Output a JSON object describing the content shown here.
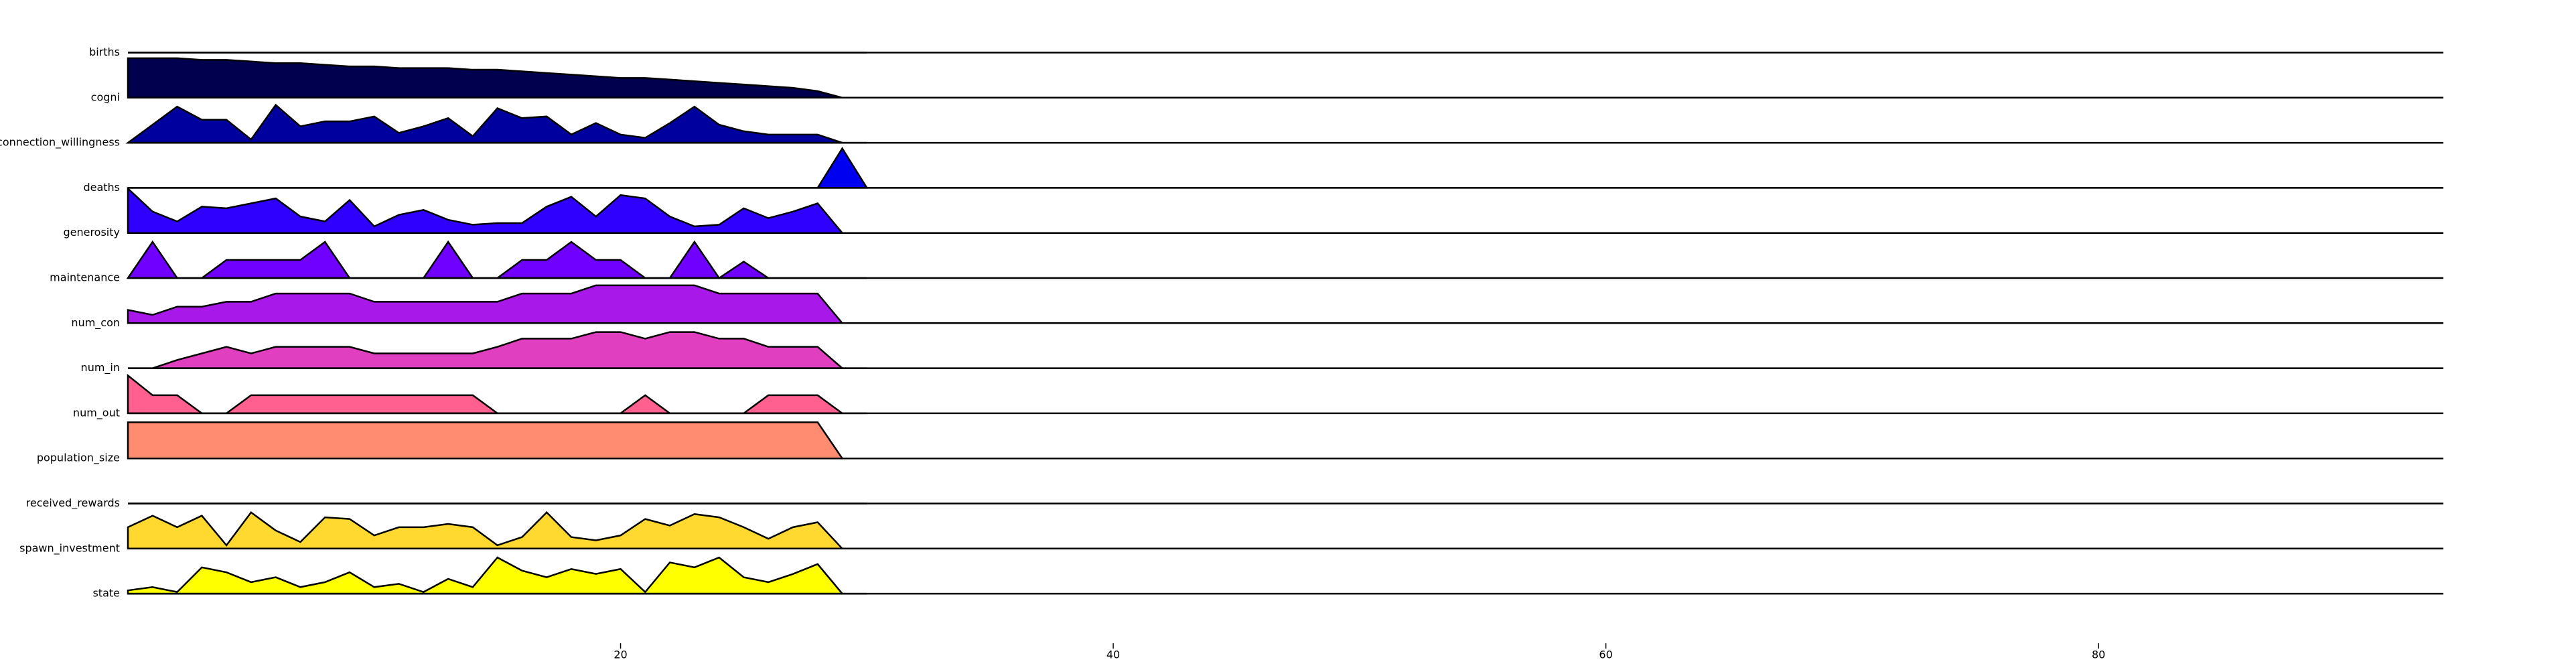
{
  "chart_data": {
    "type": "ridgeline",
    "x": [
      0,
      1,
      2,
      3,
      4,
      5,
      6,
      7,
      8,
      9,
      10,
      11,
      12,
      13,
      14,
      15,
      16,
      17,
      18,
      19,
      20,
      21,
      22,
      23,
      24,
      25,
      26,
      27,
      28,
      29,
      30
    ],
    "xlim": [
      0,
      94
    ],
    "xticks": [
      20,
      40,
      60,
      80
    ],
    "ylim": [
      0,
      27
    ],
    "series": [
      {
        "name": "births",
        "color": "#000030",
        "values": [
          0,
          0,
          0,
          0,
          0,
          0,
          0,
          0,
          0,
          0,
          0,
          0,
          0,
          0,
          0,
          0,
          0,
          0,
          0,
          0,
          0,
          0,
          0,
          0,
          0,
          0,
          0,
          0,
          0,
          0,
          0
        ]
      },
      {
        "name": "cogni",
        "color": "#00004e",
        "values": [
          24,
          24,
          24,
          23,
          23,
          22,
          21,
          21,
          20,
          19,
          19,
          18,
          18,
          18,
          17,
          17,
          16,
          15,
          14,
          13,
          12,
          12,
          11,
          10,
          9,
          8,
          7,
          6,
          4,
          0,
          0
        ]
      },
      {
        "name": "connection_willingness",
        "color": "#00009e",
        "values": [
          0,
          11,
          22,
          14,
          14,
          2,
          23,
          10,
          13,
          13,
          16,
          6,
          10,
          15,
          4,
          21,
          15,
          16,
          5,
          12,
          5,
          3,
          12,
          22,
          11,
          7,
          5,
          5,
          5,
          0,
          0
        ]
      },
      {
        "name": "deaths",
        "color": "#0000f0",
        "values": [
          0,
          0,
          0,
          0,
          0,
          0,
          0,
          0,
          0,
          0,
          0,
          0,
          0,
          0,
          0,
          0,
          0,
          0,
          0,
          0,
          0,
          0,
          0,
          0,
          0,
          0,
          0,
          0,
          0,
          24,
          0
        ]
      },
      {
        "name": "generosity",
        "color": "#3000ff",
        "values": [
          27,
          13,
          7,
          16,
          15,
          18,
          21,
          10,
          7,
          20,
          4,
          11,
          14,
          8,
          5,
          6,
          6,
          16,
          22,
          10,
          23,
          21,
          10,
          4,
          5,
          15,
          9,
          13,
          18,
          0,
          0
        ]
      },
      {
        "name": "maintenance",
        "color": "#7000ff",
        "values": [
          0,
          22,
          0,
          0,
          11,
          11,
          11,
          11,
          22,
          0,
          0,
          0,
          0,
          22,
          0,
          0,
          11,
          11,
          22,
          11,
          11,
          0,
          0,
          22,
          0,
          10,
          0,
          0,
          0,
          0,
          0
        ]
      },
      {
        "name": "num_con",
        "color": "#a818e8",
        "values": [
          8,
          5,
          10,
          10,
          13,
          13,
          18,
          18,
          18,
          18,
          13,
          13,
          13,
          13,
          13,
          13,
          18,
          18,
          18,
          23,
          23,
          23,
          23,
          23,
          18,
          18,
          18,
          18,
          18,
          0,
          0
        ]
      },
      {
        "name": "num_in",
        "color": "#e040c0",
        "values": [
          0,
          0,
          5,
          9,
          13,
          9,
          13,
          13,
          13,
          13,
          9,
          9,
          9,
          9,
          9,
          13,
          18,
          18,
          18,
          22,
          22,
          18,
          22,
          22,
          18,
          18,
          13,
          13,
          13,
          0,
          0
        ]
      },
      {
        "name": "num_out",
        "color": "#ff6090",
        "values": [
          23,
          11,
          11,
          0,
          0,
          11,
          11,
          11,
          11,
          11,
          11,
          11,
          11,
          11,
          11,
          0,
          0,
          0,
          0,
          0,
          0,
          11,
          0,
          0,
          0,
          0,
          11,
          11,
          11,
          0,
          0
        ]
      },
      {
        "name": "population_size",
        "color": "#ff8c70",
        "values": [
          22,
          22,
          22,
          22,
          22,
          22,
          22,
          22,
          22,
          22,
          22,
          22,
          22,
          22,
          22,
          22,
          22,
          22,
          22,
          22,
          22,
          22,
          22,
          22,
          22,
          22,
          22,
          22,
          22,
          0,
          0
        ]
      },
      {
        "name": "received_rewards",
        "color": "#ffb040",
        "values": [
          0,
          0,
          0,
          0,
          0,
          0,
          0,
          0,
          0,
          0,
          0,
          0,
          0,
          0,
          0,
          0,
          0,
          0,
          0,
          0,
          0,
          0,
          0,
          0,
          0,
          0,
          0,
          0,
          0,
          0,
          0
        ]
      },
      {
        "name": "spawn_investment",
        "color": "#ffd830",
        "values": [
          13,
          20,
          13,
          20,
          2,
          22,
          11,
          4,
          19,
          18,
          8,
          13,
          13,
          15,
          13,
          2,
          7,
          22,
          7,
          5,
          8,
          18,
          14,
          21,
          19,
          13,
          6,
          13,
          16,
          0,
          0
        ]
      },
      {
        "name": "state",
        "color": "#ffff00",
        "values": [
          2,
          4,
          1,
          16,
          13,
          7,
          10,
          4,
          7,
          13,
          4,
          6,
          1,
          9,
          4,
          22,
          14,
          10,
          15,
          12,
          15,
          1,
          19,
          16,
          22,
          10,
          7,
          12,
          18,
          0,
          0
        ]
      }
    ]
  }
}
